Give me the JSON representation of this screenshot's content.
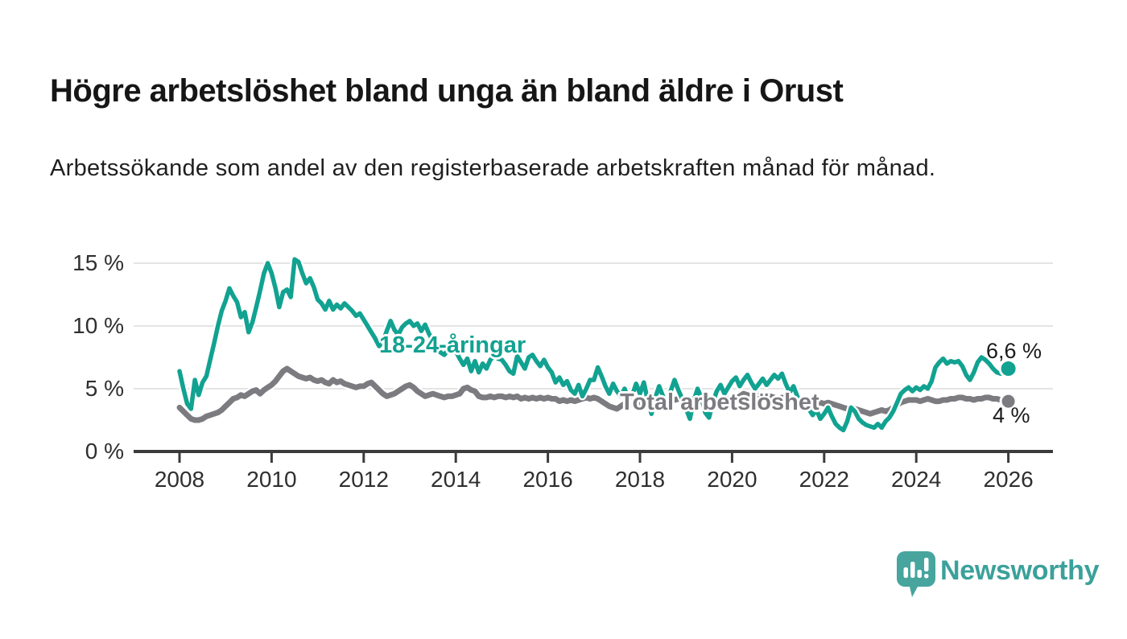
{
  "header": {
    "title": "Högre arbetslöshet bland unga än bland äldre i Orust",
    "subtitle": "Arbetssökande som andel av den registerbaserade arbetskraften månad för månad."
  },
  "chart_data": {
    "type": "line",
    "x_unit": "month",
    "x_start": "2008-01",
    "x_end": "2026-01",
    "ylim": [
      0,
      16
    ],
    "grid": true,
    "legend_position": "inline-labels",
    "xticks": {
      "values": [
        2008,
        2010,
        2012,
        2014,
        2016,
        2018,
        2020,
        2022,
        2024,
        2026
      ],
      "labels": [
        "2008",
        "2010",
        "2012",
        "2014",
        "2016",
        "2018",
        "2020",
        "2022",
        "2024",
        "2026"
      ]
    },
    "yticks": {
      "values": [
        0,
        5,
        10,
        15
      ],
      "labels": [
        "0 %",
        "5 %",
        "10 %",
        "15 %"
      ]
    },
    "series": [
      {
        "id": "youth",
        "name": "18-24-åringar",
        "color": "#12A291",
        "end_value": 6.6,
        "end_label": "6,6 %",
        "values": [
          6.4,
          5.0,
          3.8,
          3.4,
          5.7,
          4.5,
          5.5,
          6.0,
          7.3,
          8.6,
          10.0,
          11.2,
          12.0,
          13.0,
          12.4,
          11.9,
          10.7,
          11.1,
          9.5,
          10.3,
          11.5,
          12.8,
          14.2,
          15.0,
          14.2,
          13.0,
          11.5,
          12.7,
          12.9,
          12.3,
          15.3,
          15.1,
          14.2,
          13.4,
          13.8,
          13.1,
          12.1,
          11.8,
          11.3,
          12.0,
          11.3,
          11.7,
          11.4,
          11.8,
          11.5,
          11.2,
          10.8,
          11.0,
          10.5,
          10.0,
          9.5,
          9.0,
          8.4,
          8.7,
          9.6,
          10.4,
          9.7,
          9.3,
          9.9,
          10.2,
          10.4,
          10.0,
          10.2,
          9.6,
          10.1,
          9.4,
          8.8,
          8.3,
          7.9,
          7.7,
          8.1,
          8.5,
          8.0,
          7.4,
          6.9,
          7.4,
          6.4,
          7.2,
          6.3,
          7.0,
          6.6,
          7.3,
          7.6,
          7.4,
          7.3,
          6.9,
          6.4,
          6.2,
          7.6,
          7.1,
          6.6,
          7.5,
          7.7,
          7.2,
          6.8,
          7.3,
          6.7,
          6.3,
          5.5,
          5.9,
          5.3,
          5.6,
          4.9,
          4.6,
          5.3,
          4.4,
          5.0,
          5.7,
          5.7,
          6.7,
          6.0,
          5.2,
          4.6,
          5.4,
          4.8,
          4.4,
          5.0,
          4.2,
          4.5,
          5.4,
          4.6,
          5.5,
          4.1,
          3.0,
          4.3,
          5.2,
          4.4,
          3.6,
          4.8,
          5.7,
          4.9,
          4.2,
          3.4,
          2.6,
          4.0,
          5.0,
          4.3,
          3.1,
          2.7,
          3.9,
          4.8,
          5.3,
          4.6,
          5.1,
          5.6,
          5.9,
          5.2,
          5.7,
          6.1,
          5.5,
          5.0,
          5.4,
          5.8,
          5.3,
          5.7,
          6.1,
          5.8,
          6.2,
          5.4,
          4.7,
          5.2,
          4.4,
          3.7,
          4.2,
          3.4,
          2.9,
          3.3,
          2.6,
          3.0,
          3.5,
          2.8,
          2.2,
          1.9,
          1.7,
          2.4,
          3.5,
          3.2,
          2.6,
          2.3,
          2.1,
          2.0,
          1.9,
          2.2,
          1.9,
          2.4,
          2.7,
          3.2,
          3.9,
          4.6,
          4.9,
          5.1,
          4.8,
          5.1,
          4.9,
          5.2,
          5.0,
          5.6,
          6.7,
          7.1,
          7.4,
          7.0,
          7.2,
          7.1,
          7.2,
          6.8,
          6.1,
          5.7,
          6.3,
          7.1,
          7.5,
          7.3,
          7.0,
          6.6,
          6.3,
          6.2,
          6.4,
          6.6
        ]
      },
      {
        "id": "total",
        "name": "Total arbetslöshet",
        "color": "#7B7B80",
        "end_value": 4.0,
        "end_label": "4 %",
        "values": [
          3.5,
          3.2,
          2.9,
          2.6,
          2.5,
          2.5,
          2.6,
          2.8,
          2.9,
          3.0,
          3.1,
          3.3,
          3.6,
          3.9,
          4.2,
          4.3,
          4.5,
          4.4,
          4.6,
          4.8,
          4.9,
          4.6,
          4.9,
          5.1,
          5.3,
          5.6,
          6.0,
          6.4,
          6.6,
          6.4,
          6.2,
          6.0,
          5.9,
          5.8,
          5.9,
          5.7,
          5.6,
          5.7,
          5.5,
          5.4,
          5.7,
          5.5,
          5.6,
          5.4,
          5.3,
          5.2,
          5.1,
          5.2,
          5.2,
          5.4,
          5.5,
          5.2,
          4.9,
          4.6,
          4.4,
          4.5,
          4.6,
          4.8,
          5.0,
          5.2,
          5.3,
          5.1,
          4.8,
          4.6,
          4.4,
          4.5,
          4.6,
          4.5,
          4.4,
          4.3,
          4.4,
          4.4,
          4.5,
          4.6,
          5.0,
          5.1,
          4.9,
          4.8,
          4.4,
          4.3,
          4.3,
          4.4,
          4.3,
          4.4,
          4.4,
          4.3,
          4.4,
          4.3,
          4.4,
          4.2,
          4.3,
          4.2,
          4.3,
          4.2,
          4.3,
          4.2,
          4.3,
          4.2,
          4.2,
          4.0,
          4.1,
          4.0,
          4.1,
          4.0,
          4.1,
          4.2,
          4.3,
          4.2,
          4.3,
          4.2,
          4.0,
          3.8,
          3.6,
          3.5,
          3.4,
          3.6,
          3.8,
          3.7,
          3.9,
          3.8,
          3.9,
          3.8,
          4.0,
          3.9,
          4.0,
          4.1,
          4.0,
          4.1,
          4.2,
          4.1,
          4.2,
          4.1,
          4.2,
          4.1,
          4.2,
          4.3,
          4.2,
          4.1,
          4.2,
          4.1,
          4.0,
          4.1,
          4.1,
          4.2,
          4.1,
          4.2,
          4.4,
          4.6,
          4.5,
          4.4,
          4.5,
          4.4,
          4.3,
          4.3,
          4.4,
          4.3,
          4.2,
          4.3,
          4.2,
          4.1,
          4.0,
          3.9,
          4.0,
          3.9,
          3.8,
          3.7,
          3.8,
          3.9,
          3.8,
          3.9,
          3.8,
          3.7,
          3.6,
          3.5,
          3.4,
          3.5,
          3.4,
          3.3,
          3.2,
          3.1,
          3.0,
          3.1,
          3.2,
          3.3,
          3.2,
          3.3,
          3.5,
          3.7,
          3.9,
          4.0,
          4.1,
          4.1,
          4.1,
          4.0,
          4.1,
          4.2,
          4.1,
          4.0,
          4.0,
          4.1,
          4.1,
          4.2,
          4.2,
          4.3,
          4.3,
          4.2,
          4.2,
          4.1,
          4.2,
          4.2,
          4.3,
          4.3,
          4.2,
          4.2,
          4.1,
          4.1,
          4.0
        ]
      }
    ],
    "colors": {
      "axis": "#3B3B3B",
      "gridline": "#DBDBDB",
      "tick_label": "#2F2F2F",
      "annotation_text": "#1A1A1A"
    }
  },
  "footer": {
    "brand": "Newsworthy",
    "brand_color": "#3BA19A",
    "logo_icon": "speech-bubble-bar-chart-icon"
  }
}
